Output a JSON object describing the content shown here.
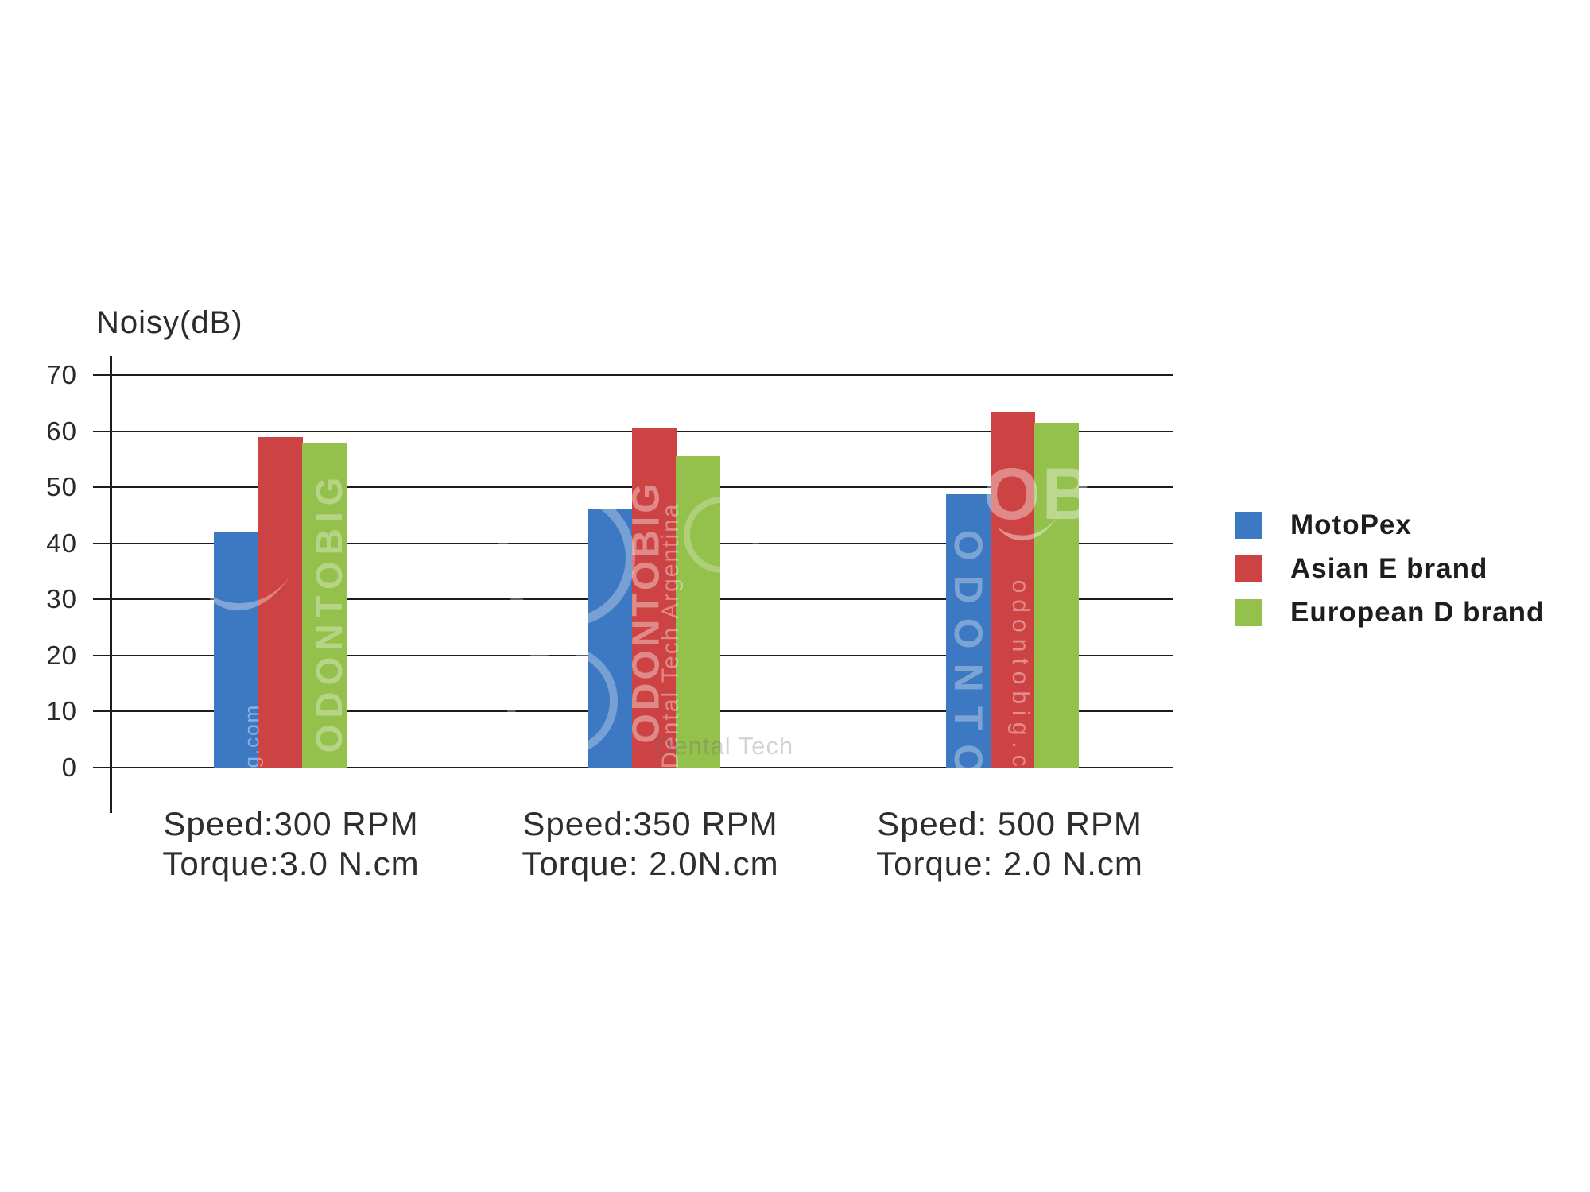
{
  "chart_data": {
    "type": "bar",
    "title": "Noisy(dB)",
    "ylabel": "Noisy(dB)",
    "xlabel": "",
    "ylim": [
      0,
      70
    ],
    "yticks": [
      0,
      10,
      20,
      30,
      40,
      50,
      60,
      70
    ],
    "grid": true,
    "legend_position": "right",
    "categories": [
      "Speed:300 RPM / Torque:3.0 N.cm",
      "Speed:350 RPM / Torque: 2.0N.cm",
      "Speed: 500 RPM / Torque: 2.0 N.cm"
    ],
    "groups": [
      {
        "label_line1": "Speed:300 RPM",
        "label_line2": "Torque:3.0 N.cm"
      },
      {
        "label_line1": "Speed:350 RPM",
        "label_line2": "Torque: 2.0N.cm"
      },
      {
        "label_line1": "Speed: 500 RPM",
        "label_line2": "Torque: 2.0 N.cm"
      }
    ],
    "series": [
      {
        "name": "MotoPex",
        "color": "#3d79c2",
        "values": [
          42,
          46,
          48.7
        ]
      },
      {
        "name": "Asian E brand",
        "color": "#cd4242",
        "values": [
          59,
          60.5,
          63.5
        ]
      },
      {
        "name": "European D brand",
        "color": "#94c04c",
        "values": [
          58,
          55.5,
          61.5
        ]
      }
    ]
  },
  "colors": {
    "grid_line": "#1d1d1f",
    "axis_text": "#2a2a2a",
    "legend_text": "#1d1d1d",
    "background": "#ffffff"
  },
  "watermarks": {
    "brand": "ODONTOBIG",
    "brand_partial": "ODONTO",
    "tagline": "Dental Tech Argentina",
    "tagline_partial": "Dental Tech",
    "website": "odontobig.com",
    "website_partial": "ig.com",
    "logo_initials": "OB"
  }
}
